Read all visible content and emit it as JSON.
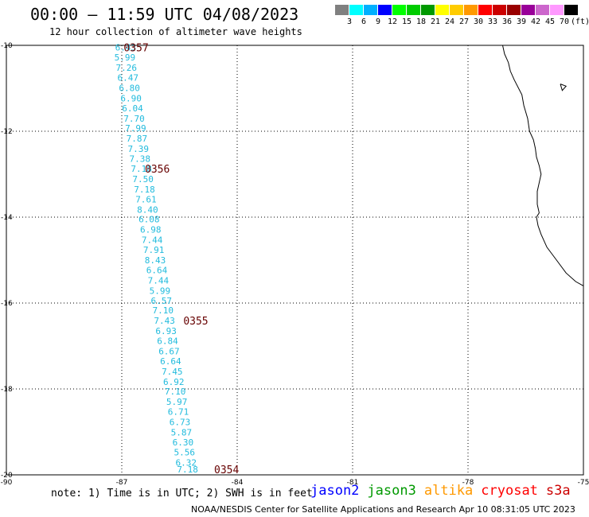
{
  "header": {
    "title": "00:00 – 11:59 UTC 04/08/2023",
    "subtitle": "12 hour collection of altimeter wave heights"
  },
  "colorbar": {
    "colors": [
      "#808080",
      "#00ffff",
      "#00b0ff",
      "#0000ff",
      "#00ff00",
      "#00cc00",
      "#009900",
      "#ffff00",
      "#ffcc00",
      "#ff9900",
      "#ff0000",
      "#cc0000",
      "#990000",
      "#990099",
      "#cc66cc",
      "#ff99ff",
      "#000000"
    ],
    "labels": [
      "3",
      "6",
      "9",
      "12",
      "15",
      "18",
      "21",
      "24",
      "27",
      "30",
      "33",
      "36",
      "39",
      "42",
      "45",
      "70"
    ],
    "unit": "(ft)"
  },
  "axes": {
    "x_ticks": [
      "-90",
      "-87",
      "-84",
      "-81",
      "-78",
      "-75"
    ],
    "y_ticks": [
      "-10",
      "-12",
      "-14",
      "-16",
      "-18",
      "-20"
    ]
  },
  "track": {
    "color": "#22bbdd",
    "points": [
      {
        "lon": -86.9,
        "lat": -10.05,
        "swh": "6.43"
      },
      {
        "lon": -86.92,
        "lat": -10.28,
        "swh": "5.99"
      },
      {
        "lon": -86.88,
        "lat": -10.52,
        "swh": "7.26"
      },
      {
        "lon": -86.84,
        "lat": -10.75,
        "swh": "6.47"
      },
      {
        "lon": -86.8,
        "lat": -10.99,
        "swh": "6.80"
      },
      {
        "lon": -86.76,
        "lat": -11.23,
        "swh": "6.90"
      },
      {
        "lon": -86.72,
        "lat": -11.46,
        "swh": "6.04"
      },
      {
        "lon": -86.68,
        "lat": -11.7,
        "swh": "7.70"
      },
      {
        "lon": -86.64,
        "lat": -11.93,
        "swh": "7.99"
      },
      {
        "lon": -86.61,
        "lat": -12.17,
        "swh": "7.87"
      },
      {
        "lon": -86.57,
        "lat": -12.41,
        "swh": "7.39"
      },
      {
        "lon": -86.53,
        "lat": -12.64,
        "swh": "7.38"
      },
      {
        "lon": -86.49,
        "lat": -12.87,
        "swh": "7.18"
      },
      {
        "lon": -86.45,
        "lat": -13.11,
        "swh": "7.50"
      },
      {
        "lon": -86.41,
        "lat": -13.35,
        "swh": "7.18"
      },
      {
        "lon": -86.37,
        "lat": -13.58,
        "swh": "7.61"
      },
      {
        "lon": -86.33,
        "lat": -13.82,
        "swh": "8.40"
      },
      {
        "lon": -86.29,
        "lat": -14.05,
        "swh": "6.08"
      },
      {
        "lon": -86.25,
        "lat": -14.29,
        "swh": "6.98"
      },
      {
        "lon": -86.21,
        "lat": -14.53,
        "swh": "7.44"
      },
      {
        "lon": -86.17,
        "lat": -14.76,
        "swh": "7.91"
      },
      {
        "lon": -86.13,
        "lat": -15.0,
        "swh": "8.43"
      },
      {
        "lon": -86.09,
        "lat": -15.23,
        "swh": "6.64"
      },
      {
        "lon": -86.05,
        "lat": -15.47,
        "swh": "7.44"
      },
      {
        "lon": -86.01,
        "lat": -15.71,
        "swh": "5.99"
      },
      {
        "lon": -85.97,
        "lat": -15.94,
        "swh": "6.57"
      },
      {
        "lon": -85.93,
        "lat": -16.17,
        "swh": "7.10"
      },
      {
        "lon": -85.89,
        "lat": -16.41,
        "swh": "7.43"
      },
      {
        "lon": -85.85,
        "lat": -16.65,
        "swh": "6.93"
      },
      {
        "lon": -85.81,
        "lat": -16.88,
        "swh": "6.84"
      },
      {
        "lon": -85.77,
        "lat": -17.12,
        "swh": "6.67"
      },
      {
        "lon": -85.73,
        "lat": -17.35,
        "swh": "6.64"
      },
      {
        "lon": -85.69,
        "lat": -17.59,
        "swh": "7.45"
      },
      {
        "lon": -85.65,
        "lat": -17.83,
        "swh": "6.92"
      },
      {
        "lon": -85.61,
        "lat": -18.06,
        "swh": "7.10"
      },
      {
        "lon": -85.57,
        "lat": -18.3,
        "swh": "5.97"
      },
      {
        "lon": -85.53,
        "lat": -18.53,
        "swh": "6.71"
      },
      {
        "lon": -85.49,
        "lat": -18.77,
        "swh": "6.73"
      },
      {
        "lon": -85.45,
        "lat": -19.01,
        "swh": "5.87"
      },
      {
        "lon": -85.41,
        "lat": -19.24,
        "swh": "6.30"
      },
      {
        "lon": -85.37,
        "lat": -19.47,
        "swh": "5.56"
      },
      {
        "lon": -85.33,
        "lat": -19.71,
        "swh": "6.32"
      },
      {
        "lon": -85.29,
        "lat": -19.87,
        "swh": "7.18"
      }
    ]
  },
  "time_labels": {
    "color": "#660000",
    "items": [
      {
        "lon": -86.95,
        "lat": -10.05,
        "text": "0357"
      },
      {
        "lon": -86.4,
        "lat": -12.87,
        "text": "0356"
      },
      {
        "lon": -85.4,
        "lat": -16.41,
        "text": "0355"
      },
      {
        "lon": -84.6,
        "lat": -19.87,
        "text": "0354"
      }
    ]
  },
  "coastline": [
    [
      -77.1,
      -10.0
    ],
    [
      -77.05,
      -10.2
    ],
    [
      -76.95,
      -10.4
    ],
    [
      -76.9,
      -10.6
    ],
    [
      -76.8,
      -10.8
    ],
    [
      -76.6,
      -11.15
    ],
    [
      -76.55,
      -11.4
    ],
    [
      -76.45,
      -11.7
    ],
    [
      -76.4,
      -12.0
    ],
    [
      -76.3,
      -12.2
    ],
    [
      -76.25,
      -12.4
    ],
    [
      -76.22,
      -12.6
    ],
    [
      -76.15,
      -12.8
    ],
    [
      -76.1,
      -13.0
    ],
    [
      -76.15,
      -13.2
    ],
    [
      -76.2,
      -13.4
    ],
    [
      -76.2,
      -13.7
    ],
    [
      -76.15,
      -13.9
    ],
    [
      -76.22,
      -14.0
    ],
    [
      -76.18,
      -14.2
    ],
    [
      -76.1,
      -14.4
    ],
    [
      -75.95,
      -14.7
    ],
    [
      -75.7,
      -15.0
    ],
    [
      -75.45,
      -15.3
    ],
    [
      -75.2,
      -15.5
    ],
    [
      -75.0,
      -15.6
    ]
  ],
  "island": [
    [
      -75.6,
      -10.9
    ],
    [
      -75.45,
      -10.95
    ],
    [
      -75.55,
      -11.05
    ],
    [
      -75.6,
      -10.9
    ]
  ],
  "footer": {
    "note": "note:  1) Time is in UTC; 2) SWH is in feet",
    "credit": "NOAA/NESDIS Center for Satellite Applications and Research    Apr 10 08:31:05 UTC 2023"
  },
  "satellites": [
    {
      "name": "jason2",
      "color": "#0000ff"
    },
    {
      "name": "jason3",
      "color": "#009900"
    },
    {
      "name": "altika",
      "color": "#ff9900"
    },
    {
      "name": "cryosat",
      "color": "#ff0000"
    },
    {
      "name": "s3a",
      "color": "#cc0000"
    }
  ]
}
